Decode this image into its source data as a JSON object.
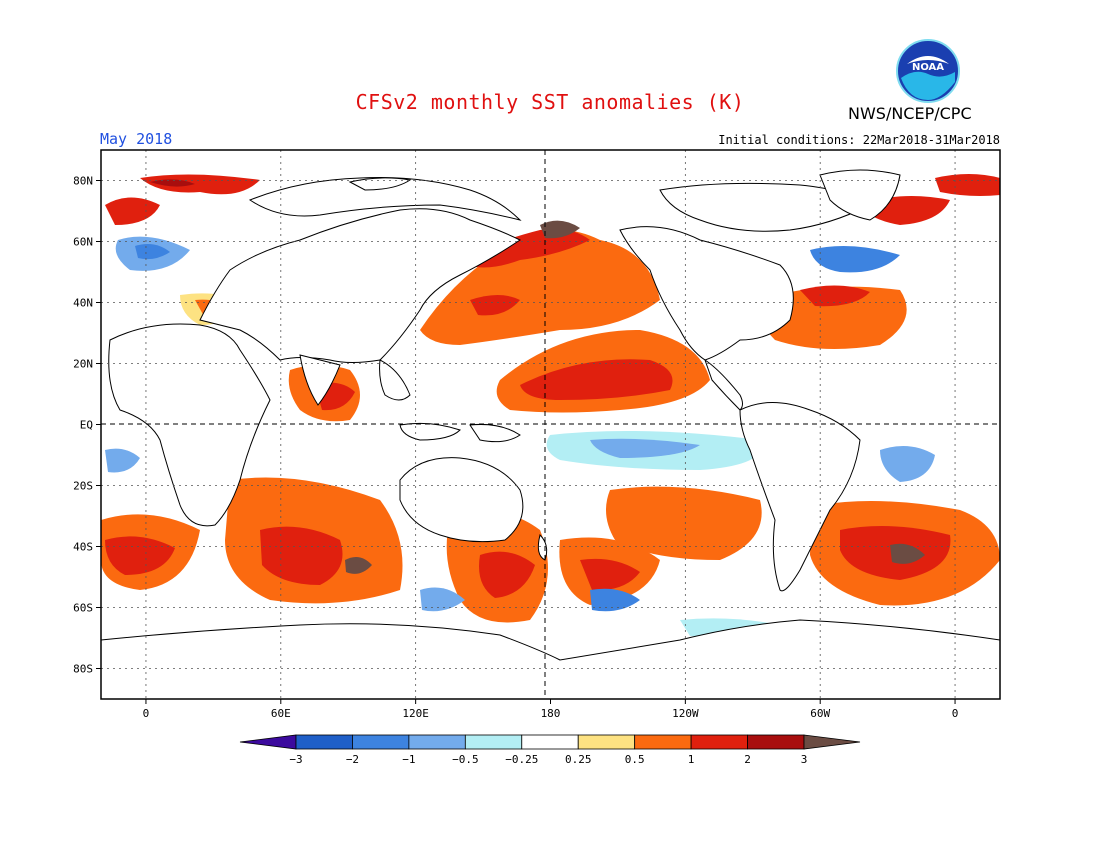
{
  "title": "CFSv2 monthly SST anomalies (K)",
  "month": "May 2018",
  "initial_conditions": "Initial conditions: 22Mar2018-31Mar2018",
  "agency": "NWS/NCEP/CPC",
  "logo_text": "NOAA",
  "lat_labels": [
    "80N",
    "60N",
    "40N",
    "20N",
    "EQ",
    "20S",
    "40S",
    "60S",
    "80S"
  ],
  "lon_labels": [
    "0",
    "60E",
    "120E",
    "180",
    "120W",
    "60W",
    "0"
  ],
  "colorbar": {
    "labels": [
      "−3",
      "−2",
      "−1",
      "−0.5",
      "−0.25",
      "0.25",
      "0.5",
      "1",
      "2",
      "3"
    ],
    "colors": [
      "#3c0a9e",
      "#1f5fc8",
      "#3d83e0",
      "#73abec",
      "#b3eef4",
      "#ffffff",
      "#fde282",
      "#fb6a10",
      "#e0200e",
      "#a80e0e",
      "#6b4c43"
    ]
  },
  "map": {
    "lat_range": [
      -90,
      90
    ],
    "lon_range": [
      -20,
      380
    ],
    "lat_ticks": [
      80,
      60,
      40,
      20,
      0,
      -20,
      -40,
      -60,
      -80
    ],
    "lon_ticks": [
      0,
      60,
      120,
      180,
      240,
      300,
      360
    ],
    "center_lines": "dashed at 180 and EQ"
  }
}
